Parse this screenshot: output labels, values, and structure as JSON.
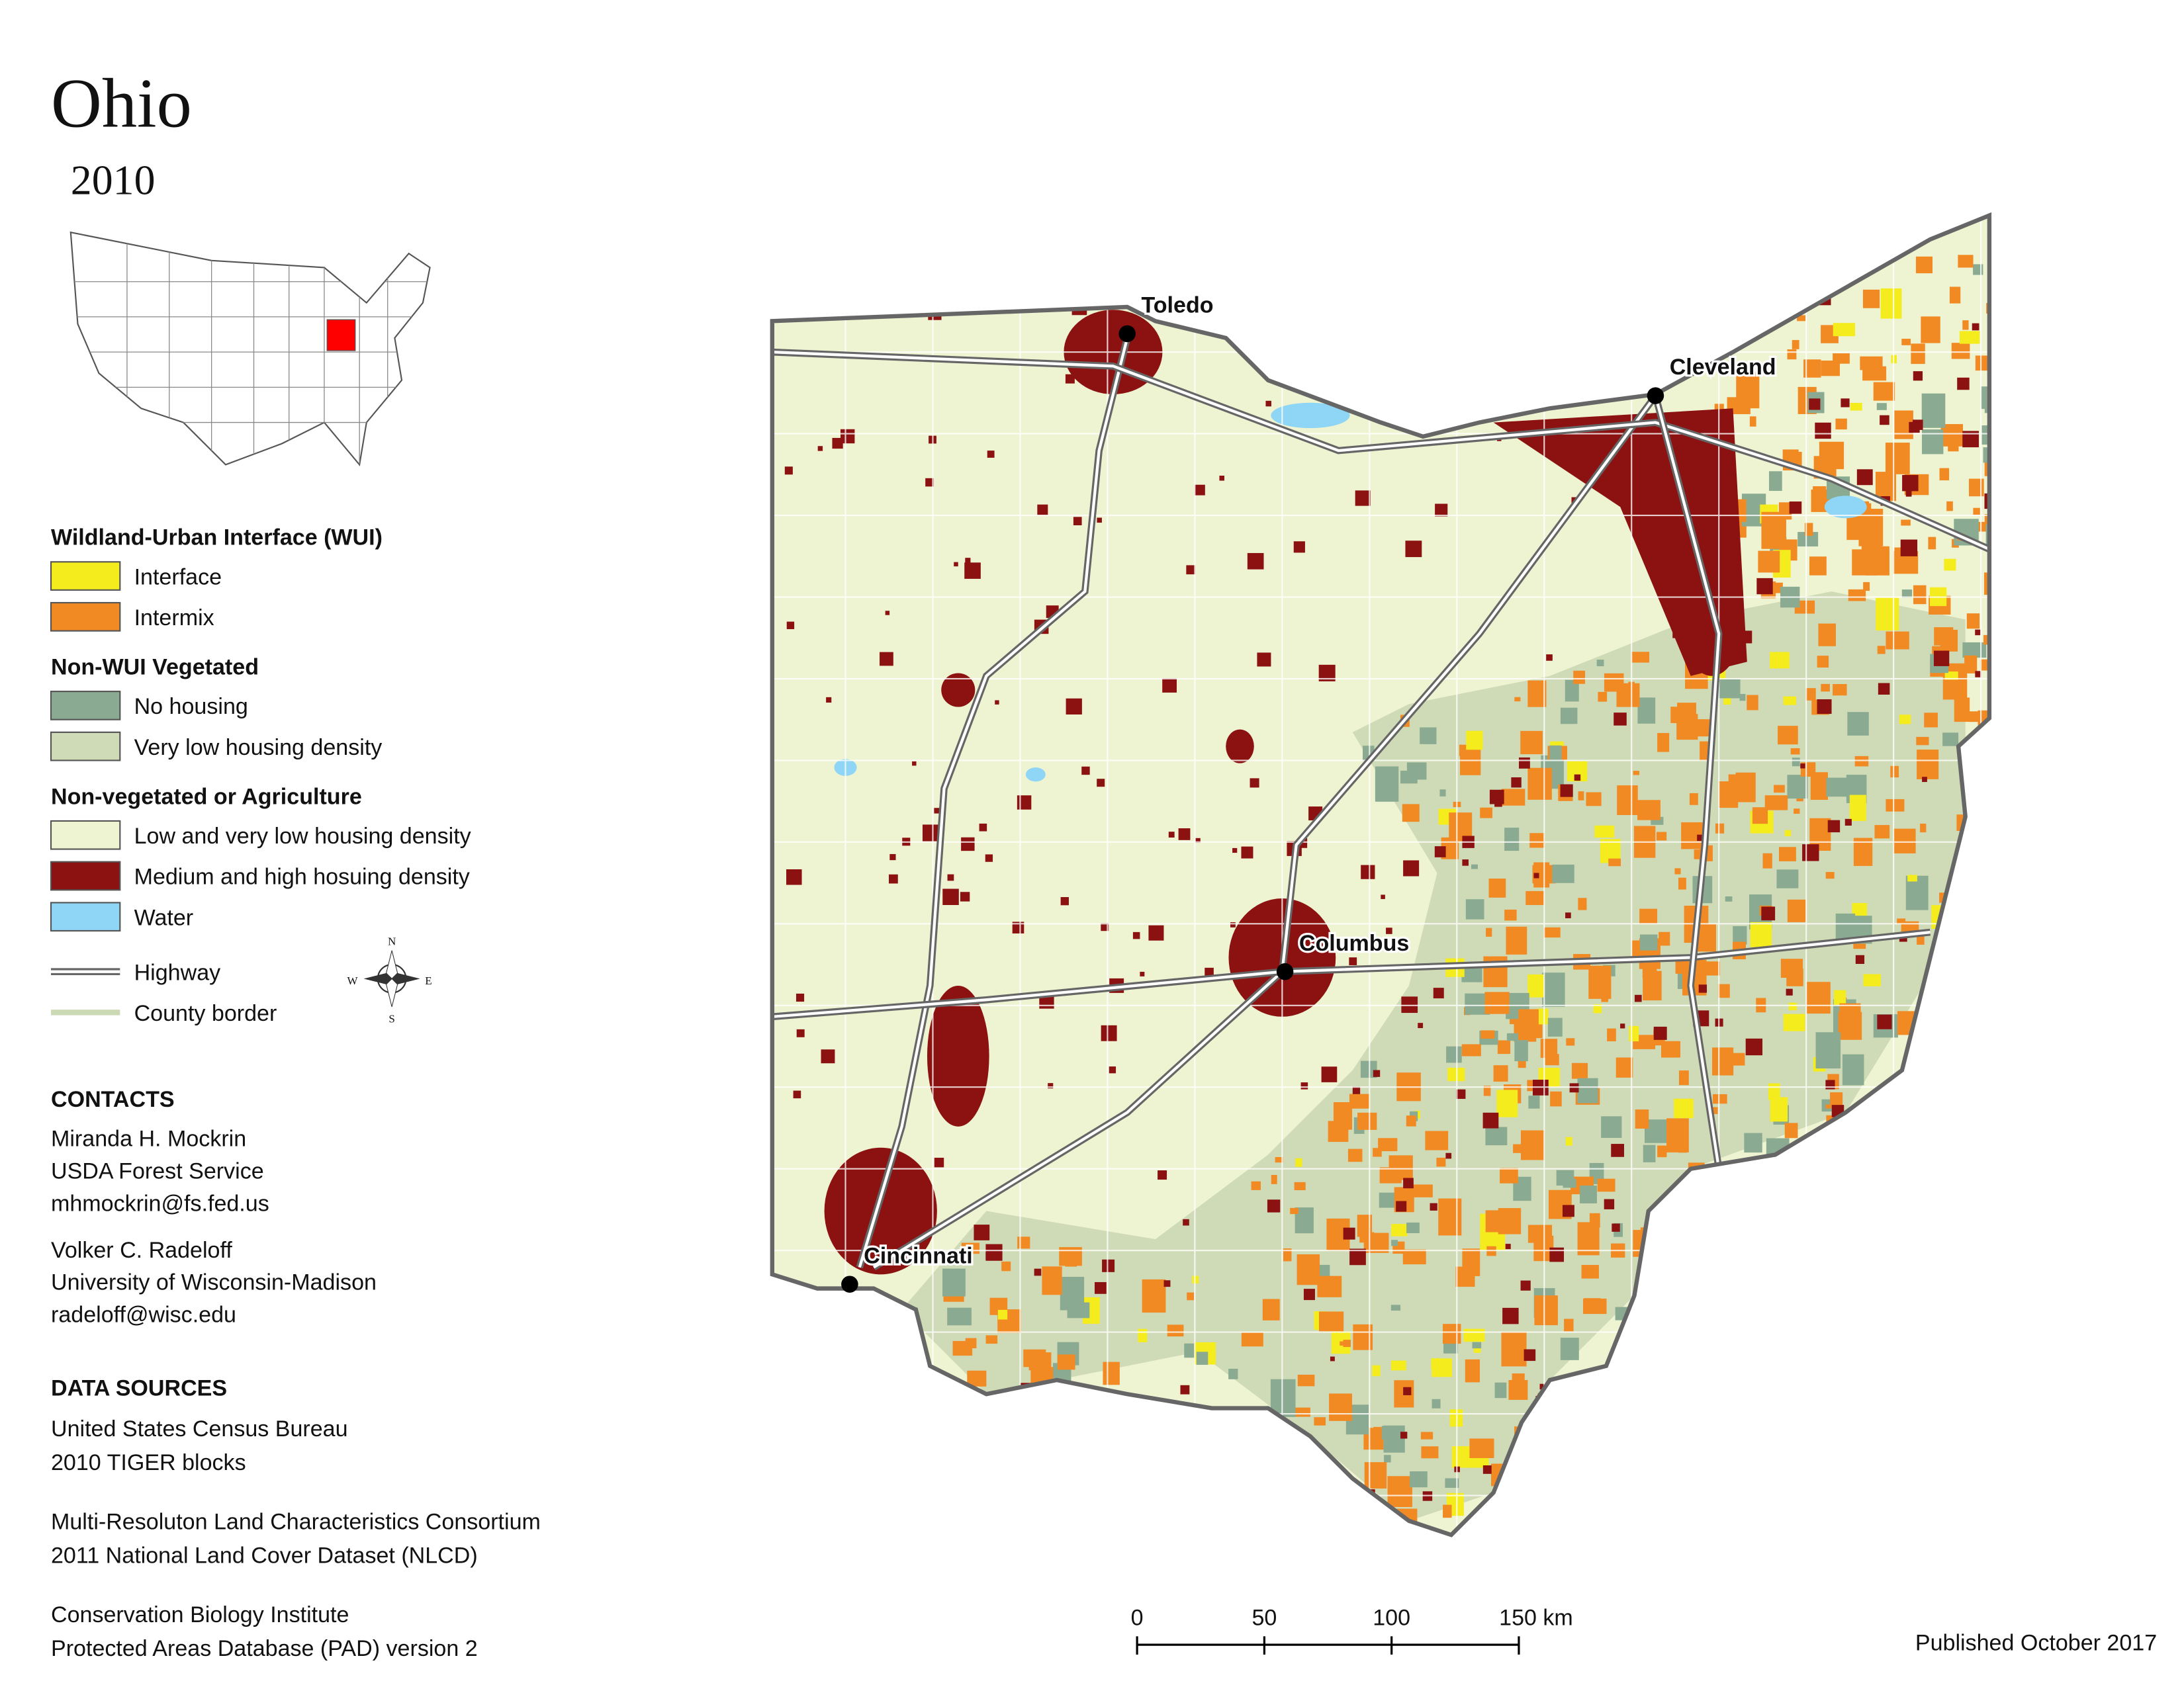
{
  "title": "Ohio",
  "subtitle": "2010",
  "legend": {
    "sections": [
      {
        "heading": "Wildland-Urban Interface (WUI)",
        "items": [
          {
            "label": "Interface",
            "color": "#f5ec1e"
          },
          {
            "label": "Intermix",
            "color": "#f28a24"
          }
        ]
      },
      {
        "heading": "Non-WUI Vegetated",
        "items": [
          {
            "label": "No housing",
            "color": "#8aab91"
          },
          {
            "label": "Very low housing density",
            "color": "#cfdab6"
          }
        ]
      },
      {
        "heading": "Non-vegetated or Agriculture",
        "items": [
          {
            "label": "Low and very low housing density",
            "color": "#eef3d2"
          },
          {
            "label": "Medium and high hosuing density",
            "color": "#8c1111"
          },
          {
            "label": "Water",
            "color": "#8fd5f5"
          }
        ]
      }
    ],
    "lines": [
      {
        "label": "Highway",
        "color": "#666666"
      },
      {
        "label": "County border",
        "color": "#cbd9b5"
      }
    ]
  },
  "compass": [
    "N",
    "E",
    "S",
    "W"
  ],
  "cities": [
    "Toledo",
    "Cleveland",
    "Columbus",
    "Cincinnati"
  ],
  "contacts": {
    "heading": "CONTACTS",
    "people": [
      [
        "Miranda H. Mockrin",
        "USDA Forest Service",
        "mhmockrin@fs.fed.us"
      ],
      [
        "Volker C. Radeloff",
        "University of Wisconsin-Madison",
        "radeloff@wisc.edu"
      ]
    ]
  },
  "data_sources": {
    "heading": "DATA SOURCES",
    "entries": [
      [
        "United States Census Bureau",
        "2010 TIGER blocks"
      ],
      [
        "Multi-Resoluton Land Characteristics Consortium",
        "2011 National Land Cover Dataset (NLCD)"
      ],
      [
        "Conservation Biology Institute",
        "Protected Areas Database (PAD) version 2"
      ]
    ]
  },
  "scale_bar": {
    "ticks": [
      0,
      50,
      100,
      {
        "value": 150,
        "label": "150 km"
      }
    ]
  },
  "published": "Published October 2017"
}
